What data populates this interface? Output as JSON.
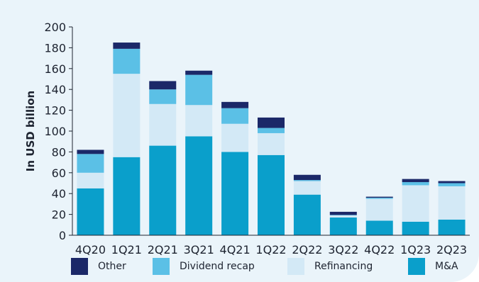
{
  "chart_data": {
    "type": "bar",
    "stacked": true,
    "ylabel": "In USD billion",
    "xlabel": "",
    "ylim": [
      0,
      200
    ],
    "yticks": [
      0,
      20,
      40,
      60,
      80,
      100,
      120,
      140,
      160,
      180,
      200
    ],
    "grid": false,
    "legend_position": "bottom",
    "categories": [
      "4Q20",
      "1Q21",
      "2Q21",
      "3Q21",
      "4Q21",
      "1Q22",
      "2Q22",
      "3Q22",
      "4Q22",
      "1Q23",
      "2Q23"
    ],
    "series": [
      {
        "name": "M&A",
        "color": "#0a9fcb",
        "values": [
          45,
          75,
          86,
          95,
          80,
          77,
          39,
          17,
          14,
          13,
          15
        ]
      },
      {
        "name": "Refinancing",
        "color": "#d3e9f6",
        "values": [
          15,
          80,
          40,
          30,
          27,
          21,
          13,
          2,
          21,
          35,
          32
        ]
      },
      {
        "name": "Dividend recap",
        "color": "#5bc0e6",
        "values": [
          18,
          24,
          14,
          29,
          15,
          5,
          1,
          0.5,
          1,
          3,
          3
        ]
      },
      {
        "name": "Other",
        "color": "#1b2868",
        "values": [
          4,
          6,
          8,
          4,
          6,
          10,
          5,
          3,
          1,
          3,
          2
        ]
      }
    ]
  },
  "legend": [
    {
      "label": "Other",
      "color": "#1b2868"
    },
    {
      "label": "Dividend recap",
      "color": "#5bc0e6"
    },
    {
      "label": "Refinancing",
      "color": "#d3e9f6"
    },
    {
      "label": "M&A",
      "color": "#0a9fcb"
    }
  ]
}
